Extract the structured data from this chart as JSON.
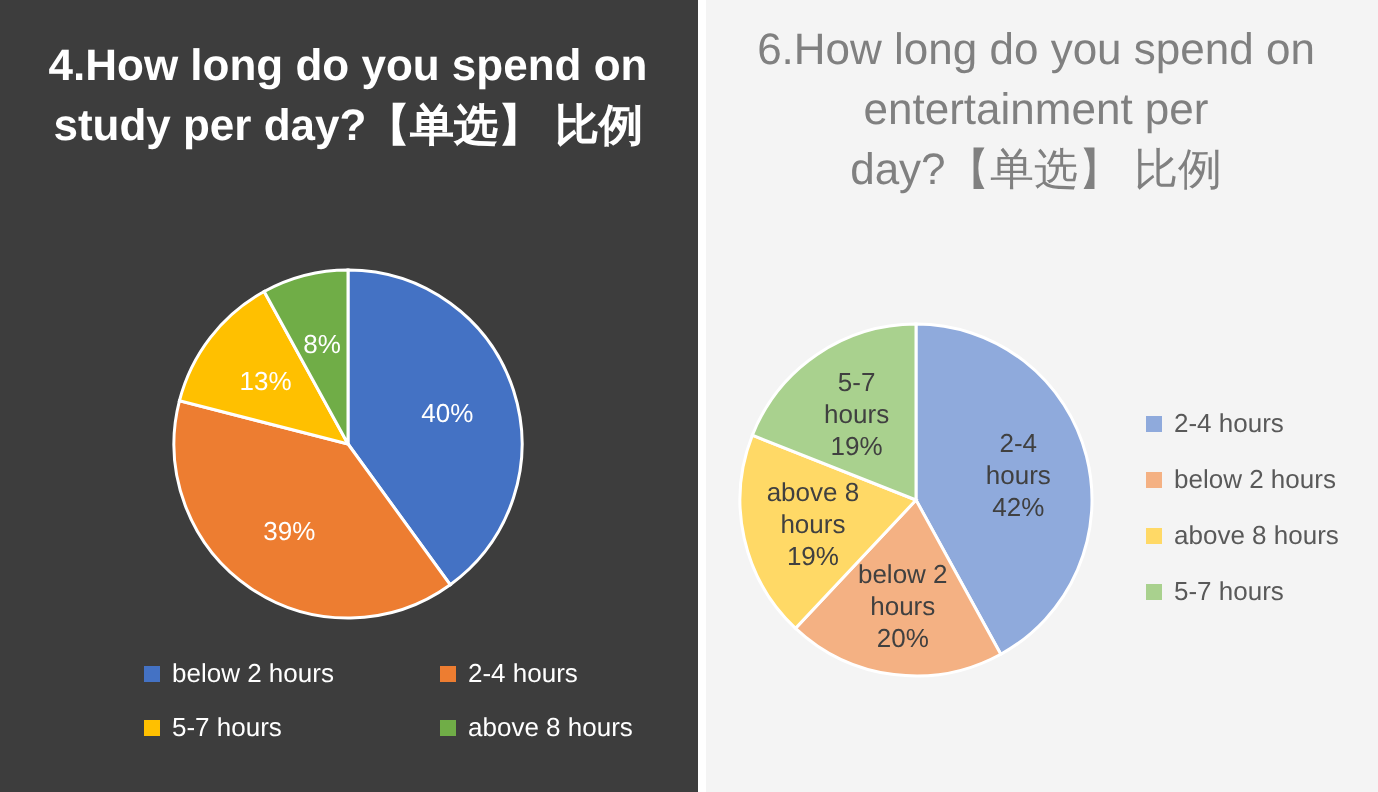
{
  "chart_data": [
    {
      "type": "pie",
      "title": "4.How long do you spend on study per day?【单选】 比例",
      "categories": [
        "below 2 hours",
        "2-4 hours",
        "5-7 hours",
        "above 8 hours"
      ],
      "values": [
        40,
        39,
        13,
        8
      ],
      "value_labels": [
        "40%",
        "39%",
        "13%",
        "8%"
      ],
      "colors": [
        "#4472c4",
        "#ed7d31",
        "#ffc000",
        "#70ad47"
      ],
      "legend": "bottom"
    },
    {
      "type": "pie",
      "title": "6.How long do you spend on entertainment per day?【单选】 比例",
      "categories": [
        "2-4 hours",
        "below 2 hours",
        "above 8 hours",
        "5-7 hours"
      ],
      "values": [
        42,
        20,
        19,
        19
      ],
      "value_labels": [
        "42%",
        "20%",
        "19%",
        "19%"
      ],
      "colors": [
        "#8faadc",
        "#f4b183",
        "#ffd966",
        "#a9d18e"
      ],
      "legend": "right"
    }
  ]
}
